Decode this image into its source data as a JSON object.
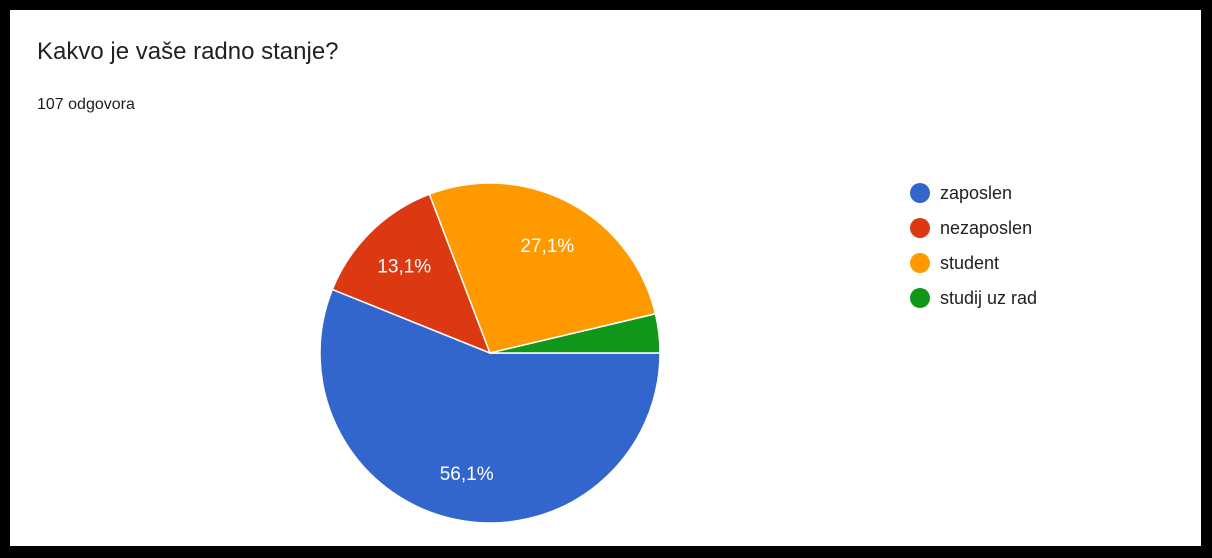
{
  "header": {
    "title": "Kakvo je vaše radno stanje?",
    "response_count": "107 odgovora"
  },
  "chart_data": {
    "type": "pie",
    "title": "Kakvo je vaše radno stanje?",
    "categories": [
      "zaposlen",
      "nezaposlen",
      "student",
      "studij uz rad"
    ],
    "values": [
      56.1,
      13.1,
      27.1,
      3.7
    ],
    "labels": [
      "56,1%",
      "13,1%",
      "27,1%",
      ""
    ],
    "colors": [
      "#3366cc",
      "#dc3912",
      "#ff9900",
      "#109618"
    ],
    "legend_position": "right"
  }
}
